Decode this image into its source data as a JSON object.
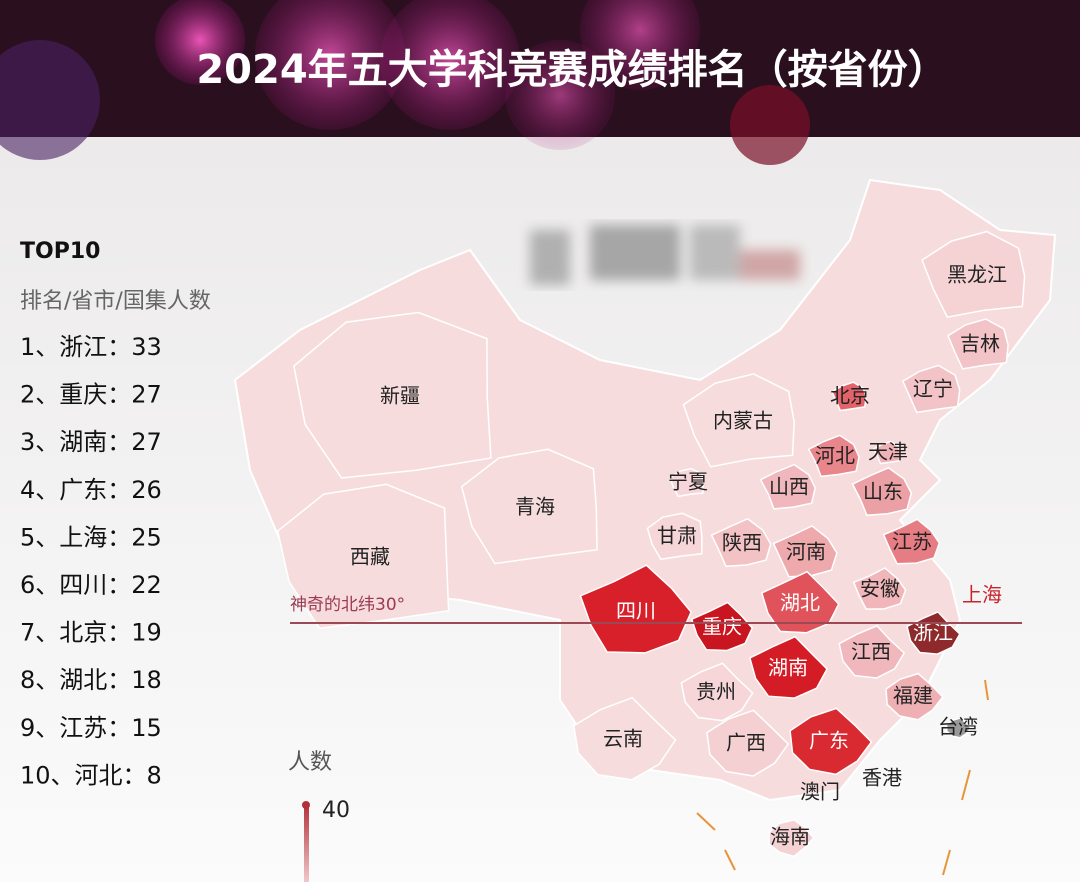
{
  "title": "2024年五大学科竞赛成绩排名（按省份）",
  "ranking": {
    "heading": "TOP10",
    "subheading": "排名/省市/国集人数",
    "items": [
      "1、浙江：33",
      "2、重庆：27",
      "3、湖南：27",
      "4、广东：26",
      "5、上海：25",
      "6、四川：22",
      "7、北京：19",
      "8、湖北：18",
      "9、江苏：15",
      "10、河北：8"
    ]
  },
  "map": {
    "line_label": "神奇的北纬30°",
    "legend": {
      "title": "人数",
      "max": 40
    },
    "provinces": [
      {
        "name": "新疆",
        "color": "#f7dcdd",
        "label_color": "#222"
      },
      {
        "name": "西藏",
        "color": "#f7dcdd",
        "label_color": "#222"
      },
      {
        "name": "青海",
        "color": "#f7dcdd",
        "label_color": "#222"
      },
      {
        "name": "甘肃",
        "color": "#f6d6d8",
        "label_color": "#222"
      },
      {
        "name": "宁夏",
        "color": "#f6d6d8",
        "label_color": "#222"
      },
      {
        "name": "内蒙古",
        "color": "#f7dcdd",
        "label_color": "#222"
      },
      {
        "name": "黑龙江",
        "color": "#f5d2d4",
        "label_color": "#222"
      },
      {
        "name": "吉林",
        "color": "#f2c4c7",
        "label_color": "#222"
      },
      {
        "name": "辽宁",
        "color": "#f2c4c7",
        "label_color": "#222"
      },
      {
        "name": "北京",
        "color": "#e2636a",
        "label_color": "#222"
      },
      {
        "name": "天津",
        "color": "#efb3b7",
        "label_color": "#222"
      },
      {
        "name": "河北",
        "color": "#e8868c",
        "label_color": "#222"
      },
      {
        "name": "山西",
        "color": "#f0b8bc",
        "label_color": "#222"
      },
      {
        "name": "山东",
        "color": "#eba0a5",
        "label_color": "#222"
      },
      {
        "name": "陕西",
        "color": "#f2c2c5",
        "label_color": "#222"
      },
      {
        "name": "河南",
        "color": "#eea9ad",
        "label_color": "#222"
      },
      {
        "name": "江苏",
        "color": "#e77d84",
        "label_color": "#222"
      },
      {
        "name": "安徽",
        "color": "#f0b6ba",
        "label_color": "#222"
      },
      {
        "name": "上海",
        "color": "#c9232c",
        "label_color": "#c9232c"
      },
      {
        "name": "四川",
        "color": "#d8202a",
        "label_color": "#ffffff"
      },
      {
        "name": "重庆",
        "color": "#c8151f",
        "label_color": "#ffffff"
      },
      {
        "name": "湖北",
        "color": "#e0535a",
        "label_color": "#ffffff"
      },
      {
        "name": "湖南",
        "color": "#d41c26",
        "label_color": "#ffffff"
      },
      {
        "name": "浙江",
        "color": "#8e2a2c",
        "label_color": "#ffffff"
      },
      {
        "name": "江西",
        "color": "#f0b8bc",
        "label_color": "#222"
      },
      {
        "name": "贵州",
        "color": "#f6d6d8",
        "label_color": "#222"
      },
      {
        "name": "云南",
        "color": "#f7dcdd",
        "label_color": "#222"
      },
      {
        "name": "广西",
        "color": "#f5d0d3",
        "label_color": "#222"
      },
      {
        "name": "广东",
        "color": "#d82a30",
        "label_color": "#ffffff"
      },
      {
        "name": "福建",
        "color": "#efb0b4",
        "label_color": "#222"
      },
      {
        "name": "台湾",
        "color": "#9a9a9a",
        "label_color": "#222"
      },
      {
        "name": "香港",
        "color": "#f3c8cb",
        "label_color": "#222"
      },
      {
        "name": "澳门",
        "color": "#f3c8cb",
        "label_color": "#222"
      },
      {
        "name": "海南",
        "color": "#f5d2d4",
        "label_color": "#222"
      }
    ]
  }
}
